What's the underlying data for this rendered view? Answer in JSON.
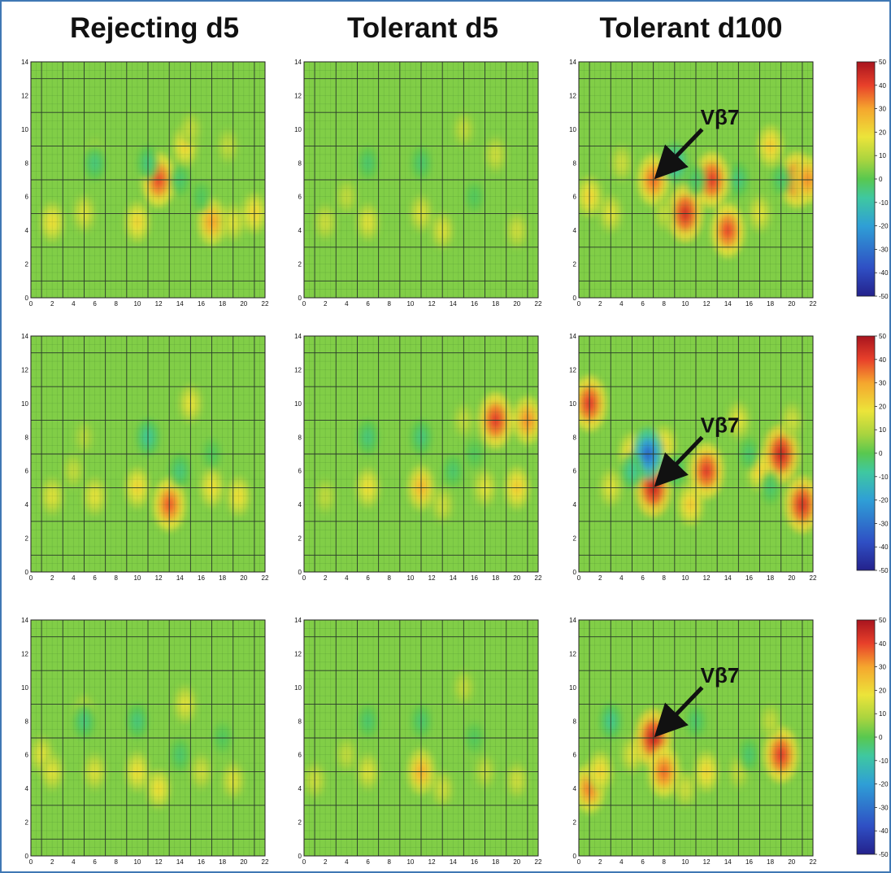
{
  "column_titles": [
    "Rejecting d5",
    "Tolerant d5",
    "Tolerant d100"
  ],
  "colors": {
    "frame": "#3f78b4",
    "colormap": [
      "#24228c",
      "#2f4fc4",
      "#2f9fd6",
      "#3fc8a0",
      "#59c84f",
      "#a8d43f",
      "#ece43a",
      "#f5a62e",
      "#e8402a",
      "#a8141e"
    ]
  },
  "chart_data": [
    {
      "type": "heatmap",
      "column": "Rejecting d5",
      "row": 1,
      "xlim": [
        0,
        22
      ],
      "ylim": [
        0,
        14
      ],
      "xticks": [
        0,
        2,
        4,
        6,
        8,
        10,
        12,
        14,
        16,
        18,
        20,
        22
      ],
      "yticks": [
        0,
        2,
        4,
        6,
        8,
        10,
        12,
        14
      ],
      "grid": true,
      "hotspots": [
        [
          2,
          4.5,
          18
        ],
        [
          5,
          5,
          14
        ],
        [
          6,
          8.5,
          8
        ],
        [
          10,
          4.5,
          20
        ],
        [
          12,
          7,
          38
        ],
        [
          14.5,
          9,
          20
        ],
        [
          17,
          4.5,
          28
        ],
        [
          19,
          4.5,
          15
        ],
        [
          21,
          5,
          20
        ],
        [
          6,
          8,
          -12
        ],
        [
          11,
          8,
          -12
        ],
        [
          14,
          7,
          -10
        ],
        [
          16,
          6,
          -8
        ],
        [
          15,
          10,
          10
        ],
        [
          18.5,
          9,
          10
        ]
      ]
    },
    {
      "type": "heatmap",
      "column": "Tolerant d5",
      "row": 1,
      "xlim": [
        0,
        22
      ],
      "ylim": [
        0,
        14
      ],
      "xticks": [
        0,
        2,
        4,
        6,
        8,
        10,
        12,
        14,
        16,
        18,
        20,
        22
      ],
      "yticks": [
        0,
        2,
        4,
        6,
        8,
        10,
        12,
        14
      ],
      "grid": true,
      "hotspots": [
        [
          2,
          4.5,
          12
        ],
        [
          4,
          6,
          10
        ],
        [
          6,
          4.5,
          15
        ],
        [
          11,
          5,
          14
        ],
        [
          13,
          4,
          14
        ],
        [
          15,
          10,
          10
        ],
        [
          18,
          8.5,
          12
        ],
        [
          20,
          4,
          12
        ],
        [
          6,
          8,
          -10
        ],
        [
          11,
          8,
          -10
        ],
        [
          16,
          6,
          -8
        ]
      ]
    },
    {
      "type": "heatmap",
      "column": "Tolerant d100",
      "row": 1,
      "xlim": [
        0,
        22
      ],
      "ylim": [
        0,
        14
      ],
      "xticks": [
        0,
        2,
        4,
        6,
        8,
        10,
        12,
        14,
        16,
        18,
        20,
        22
      ],
      "yticks": [
        0,
        2,
        4,
        6,
        8,
        10,
        12,
        14
      ],
      "grid": true,
      "hotspots": [
        [
          1,
          6,
          20
        ],
        [
          3,
          5,
          15
        ],
        [
          4,
          8,
          12
        ],
        [
          7,
          7,
          34
        ],
        [
          10,
          5,
          42
        ],
        [
          12.5,
          7,
          40
        ],
        [
          14,
          4,
          38
        ],
        [
          17,
          5,
          15
        ],
        [
          18,
          9,
          22
        ],
        [
          20.5,
          7,
          40
        ],
        [
          21.5,
          7,
          30
        ],
        [
          8,
          5,
          10
        ],
        [
          9,
          8,
          -20
        ],
        [
          15,
          7,
          -12
        ],
        [
          11,
          7,
          -10
        ],
        [
          19,
          7,
          -10
        ]
      ],
      "annotation": {
        "text": "Vβ7",
        "target": [
          7,
          7
        ]
      }
    },
    {
      "type": "heatmap",
      "column": "Rejecting d5",
      "row": 2,
      "xlim": [
        0,
        22
      ],
      "ylim": [
        0,
        14
      ],
      "xticks": [
        0,
        2,
        4,
        6,
        8,
        10,
        12,
        14,
        16,
        18,
        20,
        22
      ],
      "yticks": [
        0,
        2,
        4,
        6,
        8,
        10,
        12,
        14
      ],
      "grid": true,
      "hotspots": [
        [
          2,
          4.5,
          15
        ],
        [
          4,
          6,
          10
        ],
        [
          6,
          4.5,
          16
        ],
        [
          10,
          5,
          20
        ],
        [
          13,
          4,
          36
        ],
        [
          15,
          10,
          16
        ],
        [
          17,
          5,
          18
        ],
        [
          19.5,
          4.5,
          18
        ],
        [
          11,
          8,
          -15
        ],
        [
          14,
          6,
          -12
        ],
        [
          17,
          7,
          -8
        ],
        [
          5,
          8,
          8
        ]
      ]
    },
    {
      "type": "heatmap",
      "column": "Tolerant d5",
      "row": 2,
      "xlim": [
        0,
        22
      ],
      "ylim": [
        0,
        14
      ],
      "xticks": [
        0,
        2,
        4,
        6,
        8,
        10,
        12,
        14,
        16,
        18,
        20,
        22
      ],
      "yticks": [
        0,
        2,
        4,
        6,
        8,
        10,
        12,
        14
      ],
      "grid": true,
      "hotspots": [
        [
          2,
          4.5,
          10
        ],
        [
          6,
          5,
          18
        ],
        [
          11,
          5,
          25
        ],
        [
          13,
          4,
          12
        ],
        [
          15,
          9,
          10
        ],
        [
          18,
          9,
          40
        ],
        [
          21,
          9,
          30
        ],
        [
          20,
          5,
          22
        ],
        [
          17,
          5,
          15
        ],
        [
          6,
          8,
          -12
        ],
        [
          11,
          8,
          -12
        ],
        [
          14,
          6,
          -10
        ],
        [
          16,
          7,
          -8
        ]
      ]
    },
    {
      "type": "heatmap",
      "column": "Tolerant d100",
      "row": 2,
      "xlim": [
        0,
        22
      ],
      "ylim": [
        0,
        14
      ],
      "xticks": [
        0,
        2,
        4,
        6,
        8,
        10,
        12,
        14,
        16,
        18,
        20,
        22
      ],
      "yticks": [
        0,
        2,
        4,
        6,
        8,
        10,
        12,
        14
      ],
      "grid": true,
      "hotspots": [
        [
          1,
          10,
          40
        ],
        [
          3,
          5,
          15
        ],
        [
          5,
          7,
          22
        ],
        [
          7,
          5,
          44
        ],
        [
          8,
          7.5,
          20
        ],
        [
          10.5,
          4,
          22
        ],
        [
          12,
          6,
          40
        ],
        [
          15,
          9,
          15
        ],
        [
          17,
          6,
          20
        ],
        [
          19,
          7,
          44
        ],
        [
          21,
          4,
          42
        ],
        [
          20,
          9,
          12
        ],
        [
          6.5,
          7,
          -35
        ],
        [
          5,
          6,
          -15
        ],
        [
          9,
          6,
          -12
        ],
        [
          18,
          5,
          -10
        ],
        [
          16,
          7,
          -10
        ]
      ],
      "annotation": {
        "text": "Vβ7",
        "target": [
          7,
          5
        ]
      }
    },
    {
      "type": "heatmap",
      "column": "Rejecting d5",
      "row": 3,
      "xlim": [
        0,
        22
      ],
      "ylim": [
        0,
        14
      ],
      "xticks": [
        0,
        2,
        4,
        6,
        8,
        10,
        12,
        14,
        16,
        18,
        20,
        22
      ],
      "yticks": [
        0,
        2,
        4,
        6,
        8,
        10,
        12,
        14
      ],
      "grid": true,
      "hotspots": [
        [
          1,
          6,
          15
        ],
        [
          2,
          5,
          15
        ],
        [
          5,
          8.5,
          12
        ],
        [
          6,
          5,
          14
        ],
        [
          10,
          5,
          18
        ],
        [
          12,
          4,
          18
        ],
        [
          14.5,
          9,
          15
        ],
        [
          16,
          5,
          12
        ],
        [
          19,
          4.5,
          14
        ],
        [
          5,
          8,
          -12
        ],
        [
          10,
          8,
          -12
        ],
        [
          14,
          6,
          -10
        ],
        [
          18,
          7,
          -8
        ]
      ]
    },
    {
      "type": "heatmap",
      "column": "Tolerant d5",
      "row": 3,
      "xlim": [
        0,
        22
      ],
      "ylim": [
        0,
        14
      ],
      "xticks": [
        0,
        2,
        4,
        6,
        8,
        10,
        12,
        14,
        16,
        18,
        20,
        22
      ],
      "yticks": [
        0,
        2,
        4,
        6,
        8,
        10,
        12,
        14
      ],
      "grid": true,
      "hotspots": [
        [
          1,
          4.5,
          12
        ],
        [
          4,
          6,
          10
        ],
        [
          6,
          5,
          14
        ],
        [
          11,
          5,
          26
        ],
        [
          13,
          4,
          12
        ],
        [
          15,
          10,
          10
        ],
        [
          17,
          5,
          10
        ],
        [
          20,
          4.5,
          12
        ],
        [
          6,
          8,
          -10
        ],
        [
          11,
          8,
          -10
        ],
        [
          16,
          7,
          -8
        ]
      ]
    },
    {
      "type": "heatmap",
      "column": "Tolerant d100",
      "row": 3,
      "xlim": [
        0,
        22
      ],
      "ylim": [
        0,
        14
      ],
      "xticks": [
        0,
        2,
        4,
        6,
        8,
        10,
        12,
        14,
        16,
        18,
        20,
        22
      ],
      "yticks": [
        0,
        2,
        4,
        6,
        8,
        10,
        12,
        14
      ],
      "grid": true,
      "hotspots": [
        [
          1,
          4,
          32
        ],
        [
          2,
          5,
          20
        ],
        [
          5,
          6,
          14
        ],
        [
          7,
          7,
          44
        ],
        [
          8,
          5,
          34
        ],
        [
          12,
          5,
          20
        ],
        [
          19,
          6,
          40
        ],
        [
          10,
          4,
          12
        ],
        [
          15,
          5,
          10
        ],
        [
          18,
          8,
          10
        ],
        [
          3,
          8,
          -14
        ],
        [
          11,
          8,
          -10
        ],
        [
          16,
          6,
          -10
        ]
      ],
      "annotation": {
        "text": "Vβ7",
        "target": [
          7,
          7
        ]
      }
    }
  ],
  "colorbar": {
    "ticks": [
      50,
      40,
      30,
      20,
      10,
      0,
      -10,
      -20,
      -30,
      -40,
      -50
    ],
    "range": [
      -50,
      50
    ]
  }
}
